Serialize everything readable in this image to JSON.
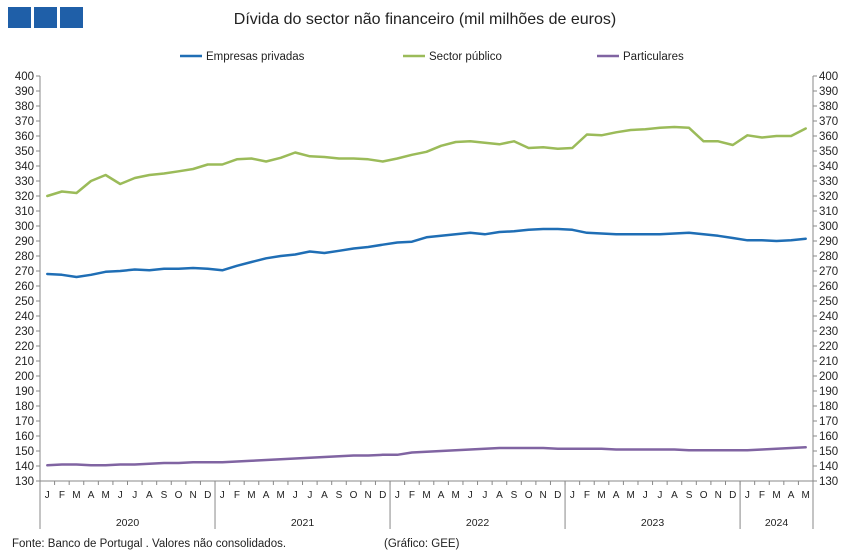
{
  "title": "Dívida do sector não financeiro (mil milhões de euros)",
  "source": "Fonte: Banco de Portugal . Valores não consolidados.",
  "credit": "(Gráfico: GEE)",
  "chart_data": {
    "type": "line",
    "title": "Dívida do sector não financeiro (mil milhões de euros)",
    "legend_position": "top",
    "grid": false,
    "ylim": [
      130,
      400
    ],
    "y_ticks": [
      130,
      140,
      150,
      160,
      170,
      180,
      190,
      200,
      210,
      220,
      230,
      240,
      250,
      260,
      270,
      280,
      290,
      300,
      310,
      320,
      330,
      340,
      350,
      360,
      370,
      380,
      390,
      400
    ],
    "secondary_y_axis": true,
    "month_labels": [
      "J",
      "F",
      "M",
      "A",
      "M",
      "J",
      "J",
      "A",
      "S",
      "O",
      "N",
      "D",
      "J",
      "F",
      "M",
      "A",
      "M",
      "J",
      "J",
      "A",
      "S",
      "O",
      "N",
      "D",
      "J",
      "F",
      "M",
      "A",
      "M",
      "J",
      "J",
      "A",
      "S",
      "O",
      "N",
      "D",
      "J",
      "F",
      "M",
      "A",
      "M",
      "J",
      "J",
      "A",
      "S",
      "O",
      "N",
      "D",
      "J",
      "F",
      "M",
      "A",
      "M"
    ],
    "years": [
      {
        "label": "2020",
        "months": 12
      },
      {
        "label": "2021",
        "months": 12
      },
      {
        "label": "2022",
        "months": 12
      },
      {
        "label": "2023",
        "months": 12
      },
      {
        "label": "2024",
        "months": 5
      }
    ],
    "series": [
      {
        "name": "Empresas privadas",
        "color": "#1f6eb5",
        "values": [
          268,
          267.5,
          266,
          267.5,
          269.5,
          270,
          271,
          270.5,
          271.5,
          271.5,
          272,
          271.5,
          270.5,
          273.5,
          276,
          278.5,
          280,
          281,
          283,
          282,
          283.5,
          285,
          286,
          287.5,
          289,
          289.5,
          292.5,
          293.5,
          294.5,
          295.5,
          294.5,
          296,
          296.5,
          297.5,
          298,
          298,
          297.5,
          295.5,
          295,
          294.5,
          294.5,
          294.5,
          294.5,
          295,
          295.5,
          294.5,
          293.5,
          292,
          290.5,
          290.5,
          290,
          290.5,
          291.5
        ]
      },
      {
        "name": "Sector público",
        "color": "#9bbb59",
        "values": [
          320,
          323,
          322,
          330,
          334,
          328,
          332,
          334,
          335,
          336.5,
          338,
          341,
          341,
          344.5,
          345,
          343,
          345.5,
          349,
          346.5,
          346,
          345,
          345,
          344.5,
          343,
          345,
          347.5,
          349.5,
          353.5,
          356,
          356.5,
          355.5,
          354.5,
          356.5,
          352,
          352.5,
          351.5,
          352,
          361,
          360.5,
          362.5,
          364,
          364.5,
          365.5,
          366,
          365.5,
          356.5,
          356.5,
          354,
          360.5,
          359,
          360,
          360,
          365
        ]
      },
      {
        "name": "Particulares",
        "color": "#8064a2",
        "values": [
          140.5,
          141,
          141,
          140.5,
          140.5,
          141,
          141,
          141.5,
          142,
          142,
          142.5,
          142.5,
          142.5,
          143,
          143.5,
          144,
          144.5,
          145,
          145.5,
          146,
          146.5,
          147,
          147,
          147.5,
          147.5,
          149,
          149.5,
          150,
          150.5,
          151,
          151.5,
          152,
          152,
          152,
          152,
          151.5,
          151.5,
          151.5,
          151.5,
          151,
          151,
          151,
          151,
          151,
          150.5,
          150.5,
          150.5,
          150.5,
          150.5,
          151,
          151.5,
          152,
          152.5
        ]
      }
    ]
  }
}
